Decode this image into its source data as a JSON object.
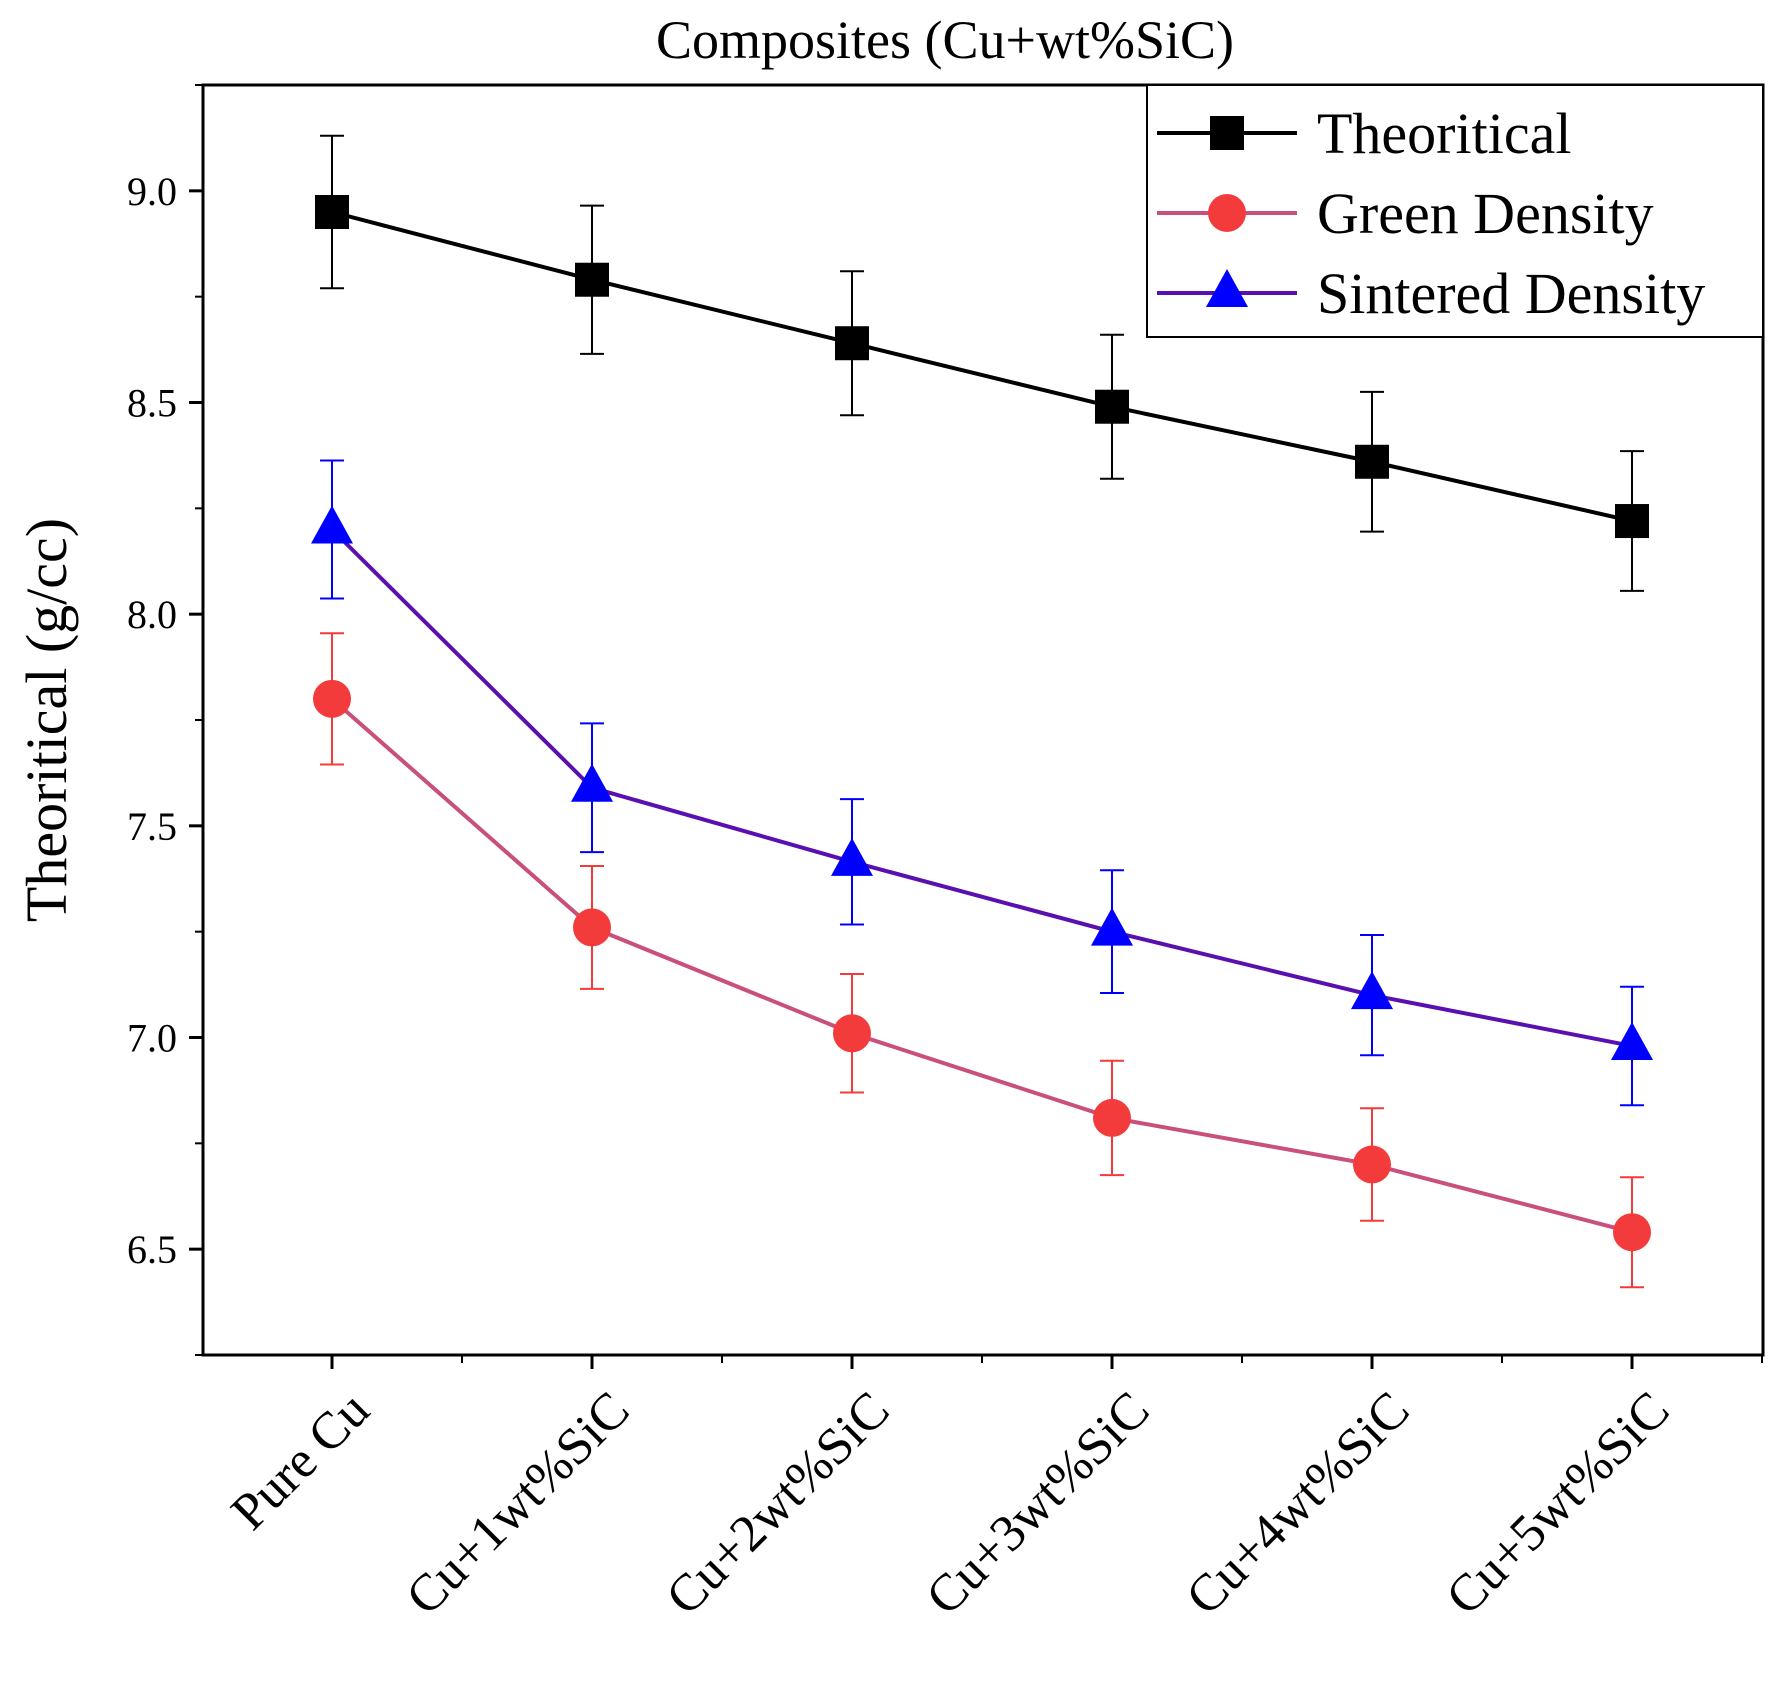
{
  "chart_data": {
    "type": "line",
    "title": "Composites (Cu+wt%SiC)",
    "xlabel": "",
    "ylabel": "Theoritical (g/cc)",
    "categories": [
      "Pure Cu",
      "Cu+1wt%SiC",
      "Cu+2wt%SiC",
      "Cu+3wt%SiC",
      "Cu+4wt%SiC",
      "Cu+5wt%SiC"
    ],
    "ylim": [
      6.25,
      9.25
    ],
    "yticks": [
      "6.5",
      "7.0",
      "7.5",
      "8.0",
      "8.5",
      "9.0"
    ],
    "legend_position": "top-right",
    "series": [
      {
        "name": "Theoritical",
        "color": "#000000",
        "error_color": "#000000",
        "marker": "square",
        "values": [
          8.95,
          8.79,
          8.64,
          8.49,
          8.36,
          8.22
        ],
        "errors": [
          0.18,
          0.175,
          0.17,
          0.17,
          0.165,
          0.165
        ]
      },
      {
        "name": "Green Density",
        "color": "#c94f7c",
        "marker_color": "#f43b3b",
        "error_color": "#f43b3b",
        "marker": "circle",
        "values": [
          7.8,
          7.26,
          7.01,
          6.81,
          6.7,
          6.54
        ],
        "errors": [
          0.155,
          0.145,
          0.14,
          0.135,
          0.133,
          0.13
        ]
      },
      {
        "name": "Sintered Density",
        "color": "#5a0fb0",
        "marker_color": "#0000ff",
        "error_color": "#0000ff",
        "marker": "triangle",
        "values": [
          8.2,
          7.59,
          7.415,
          7.25,
          7.1,
          6.98
        ],
        "errors": [
          0.163,
          0.152,
          0.148,
          0.145,
          0.142,
          0.14
        ]
      }
    ]
  }
}
